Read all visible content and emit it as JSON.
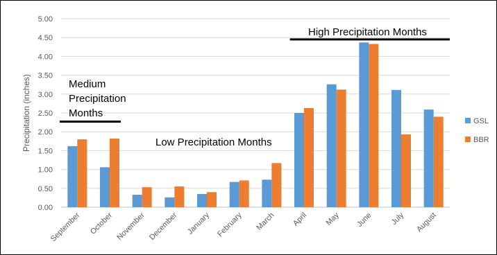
{
  "chart_data": {
    "type": "bar",
    "title": "",
    "xlabel": "",
    "ylabel": "Precipitation (inches)",
    "ylim": [
      0,
      5
    ],
    "yticks": [
      "0.00",
      "0.50",
      "1.00",
      "1.50",
      "2.00",
      "2.50",
      "3.00",
      "3.50",
      "4.00",
      "4.50",
      "5.00"
    ],
    "grid": true,
    "legend": "right",
    "categories": [
      "September",
      "October",
      "November",
      "December",
      "January",
      "February",
      "March",
      "April",
      "May",
      "June",
      "July",
      "August"
    ],
    "series": [
      {
        "name": "GSL",
        "color": "#5B9BD5",
        "values": [
          1.62,
          1.06,
          0.33,
          0.26,
          0.35,
          0.67,
          0.73,
          2.5,
          3.26,
          4.37,
          3.11,
          2.59
        ]
      },
      {
        "name": "BBR",
        "color": "#ED7D31",
        "values": [
          1.8,
          1.82,
          0.53,
          0.55,
          0.4,
          0.71,
          1.17,
          2.63,
          3.12,
          4.33,
          1.93,
          2.4
        ]
      }
    ],
    "annotations": [
      {
        "name": "medium",
        "lines": [
          "Medium",
          "Precipitation",
          "Months"
        ],
        "x_start": "September",
        "x_end": "October",
        "y": 2.27
      },
      {
        "name": "low",
        "lines": [
          "Low Precipitation Months"
        ]
      },
      {
        "name": "high",
        "lines": [
          "High Precipitation Months"
        ],
        "x_start": "April",
        "x_end": "August",
        "y": 4.45
      }
    ]
  }
}
